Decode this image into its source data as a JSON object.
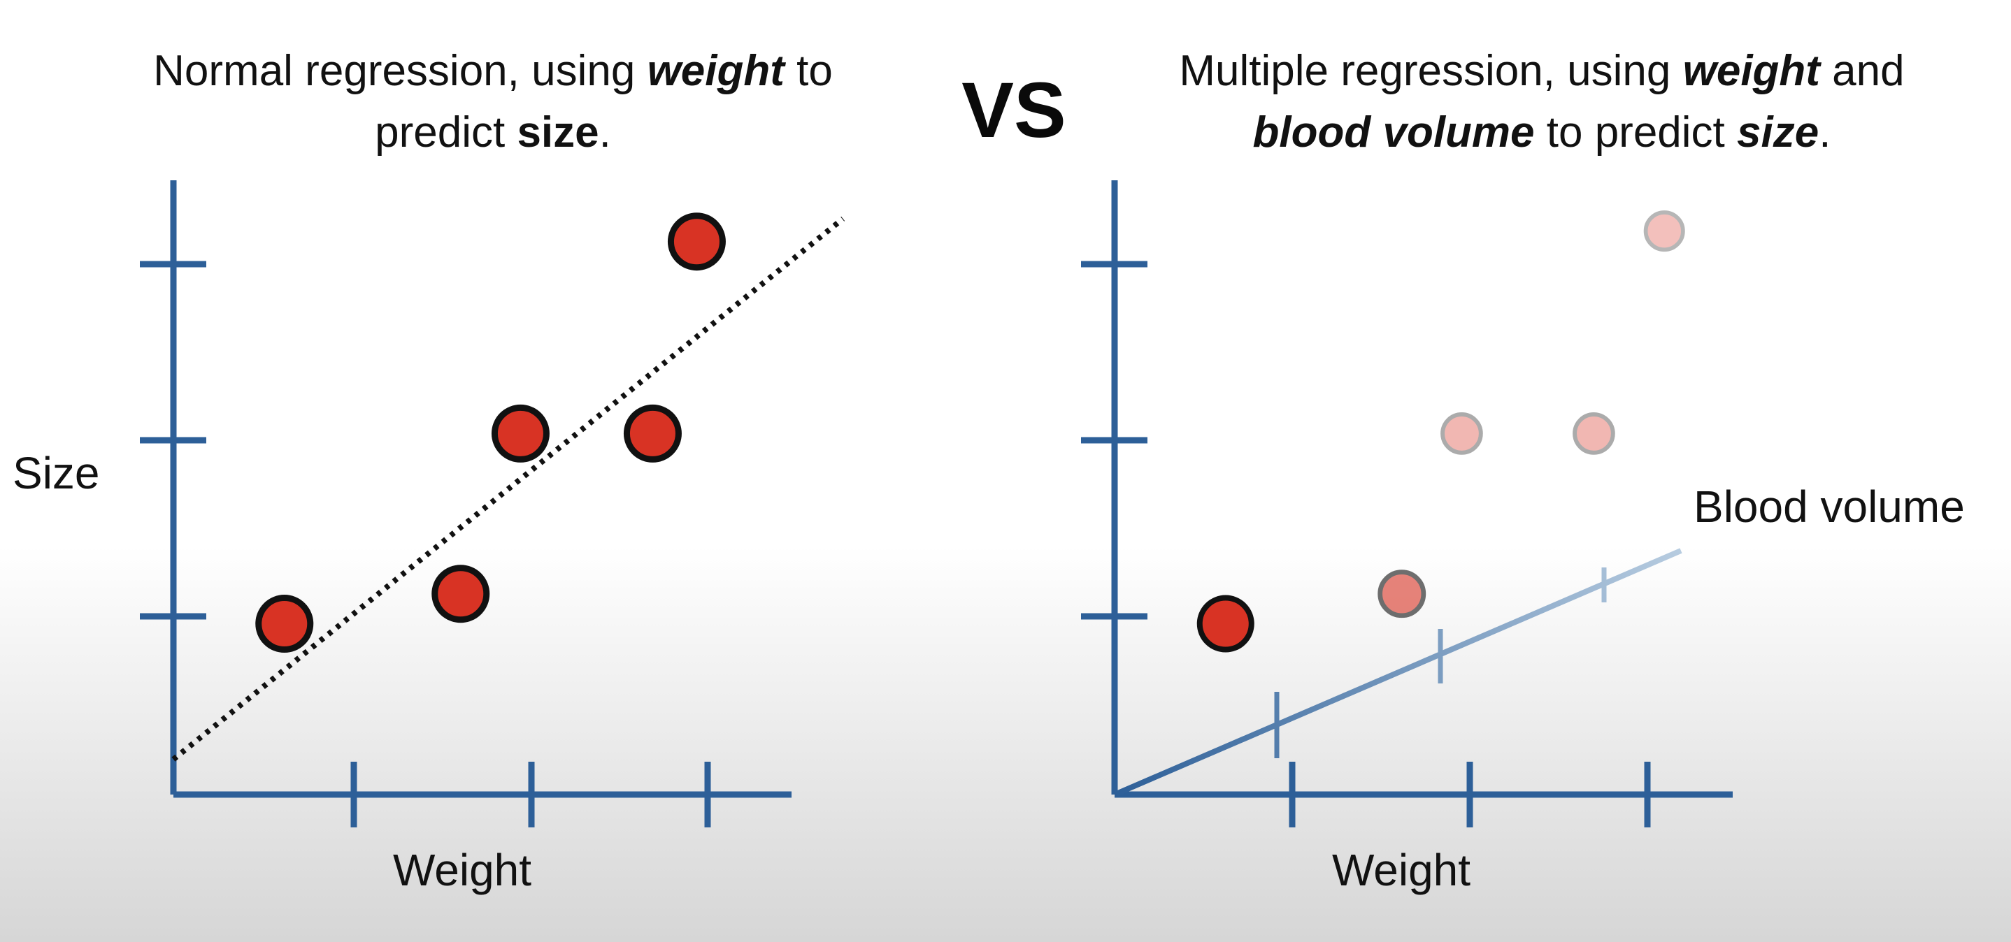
{
  "left_title": {
    "line1_pre": "Normal regression, using ",
    "line1_bold": "weight",
    "line1_post": " to",
    "line2_pre": "predict ",
    "line2_bold": "size",
    "line2_post": "."
  },
  "vs": "VS",
  "right_title": {
    "line1_pre": "Multiple regression, using ",
    "line1_bold": "weight",
    "line1_post": " and",
    "line2_bold": "blood volume",
    "line2_mid": " to predict ",
    "line2_bold2": "size",
    "line2_post": "."
  },
  "left_plot": {
    "ylabel": "Size",
    "xlabel": "Weight",
    "points": [
      {
        "weight": 0.63,
        "size": 0.97
      },
      {
        "weight": 1.63,
        "size": 1.14
      },
      {
        "weight": 1.97,
        "size": 2.05
      },
      {
        "weight": 2.72,
        "size": 2.05
      },
      {
        "weight": 2.97,
        "size": 3.14
      }
    ],
    "fit_line": {
      "from": [
        0,
        0.2
      ],
      "to": [
        3.8,
        3.27
      ],
      "style": "dotted"
    }
  },
  "right_plot": {
    "xlabel": "Weight",
    "zlabel": "Blood volume",
    "points": [
      {
        "weight": 0.63,
        "size": 0.97,
        "opacity": 1.0
      },
      {
        "weight": 1.63,
        "size": 1.14,
        "opacity": 0.6
      },
      {
        "weight": 1.97,
        "size": 2.05,
        "opacity": 0.35
      },
      {
        "weight": 2.72,
        "size": 2.05,
        "opacity": 0.35
      },
      {
        "weight": 3.12,
        "size": 3.2,
        "opacity": 0.3
      }
    ]
  },
  "colors": {
    "axis": "#2d5f98",
    "point_fill": "#d83324",
    "point_stroke": "#111111",
    "fit_line": "#111111",
    "depth_axis_start": "#2d5f98",
    "depth_axis_end": "#b7cce0"
  }
}
